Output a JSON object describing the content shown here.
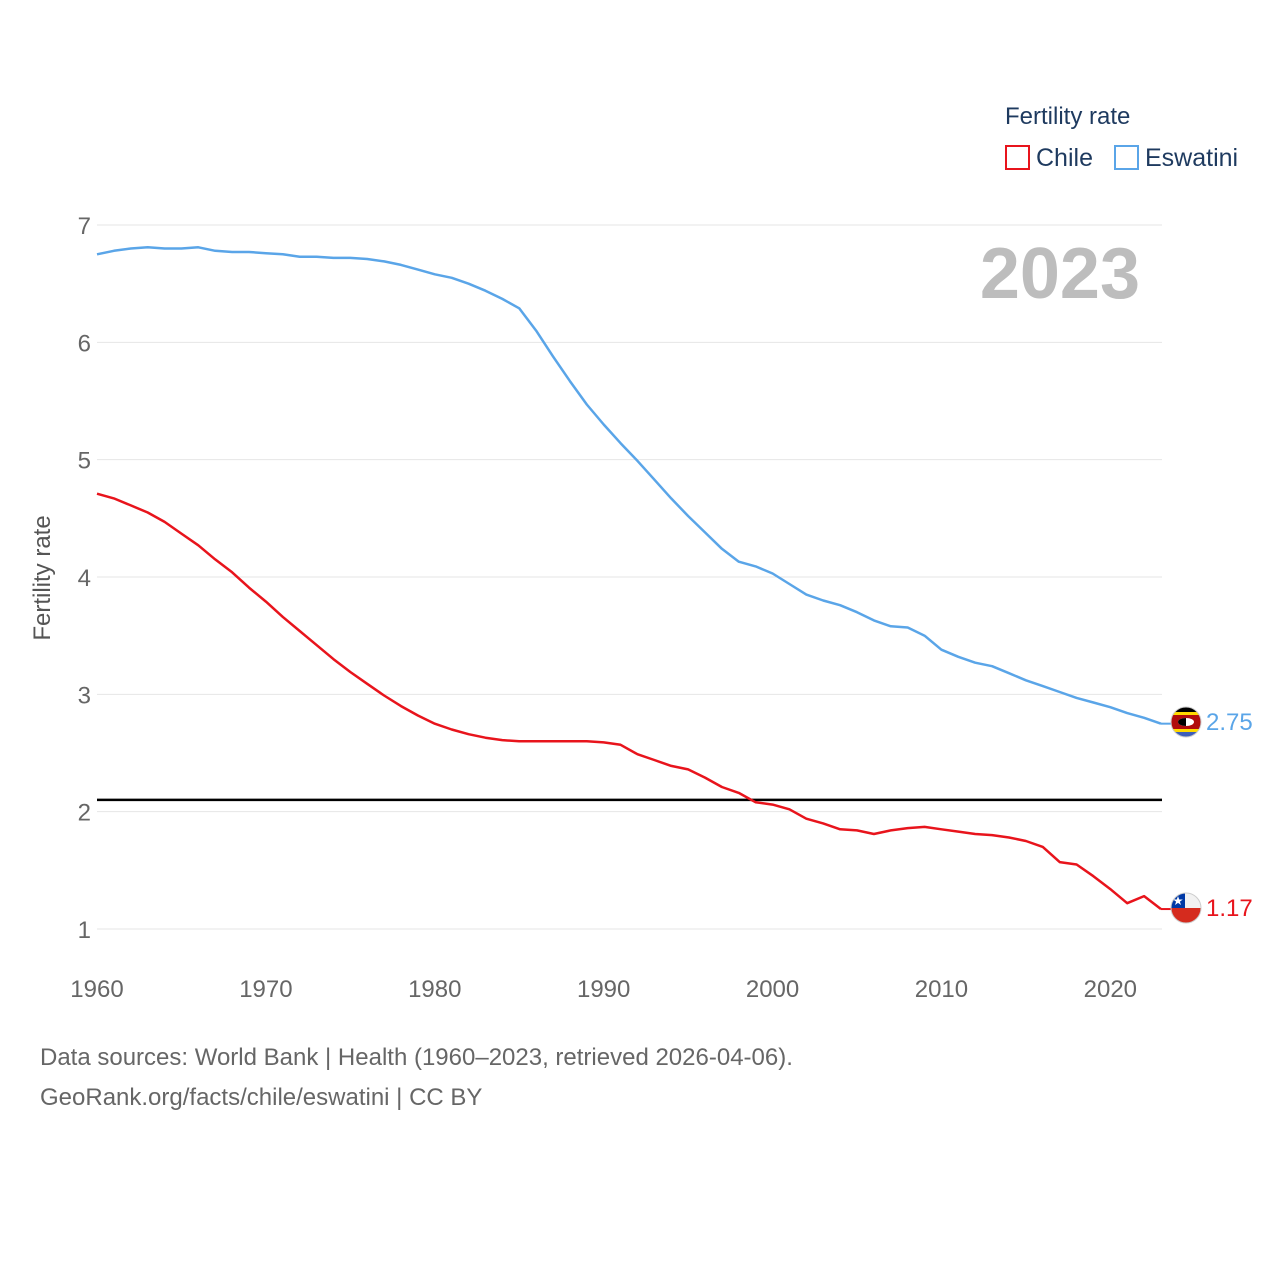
{
  "chart_data": {
    "type": "line",
    "title": "",
    "year_display": "2023",
    "xlabel": "",
    "ylabel": "Fertility rate",
    "xlim": [
      1960,
      2023
    ],
    "ylim": [
      0.9,
      7.1
    ],
    "x_ticks": [
      1960,
      1970,
      1980,
      1990,
      2000,
      2010,
      2020
    ],
    "y_ticks": [
      1,
      2,
      3,
      4,
      5,
      6,
      7
    ],
    "grid": true,
    "legend": {
      "title": "Fertility rate",
      "position": "top-right",
      "entries": [
        "Chile",
        "Eswatini"
      ]
    },
    "reference_line": {
      "value": 2.1,
      "color": "#000000"
    },
    "x": [
      1960,
      1961,
      1962,
      1963,
      1964,
      1965,
      1966,
      1967,
      1968,
      1969,
      1970,
      1971,
      1972,
      1973,
      1974,
      1975,
      1976,
      1977,
      1978,
      1979,
      1980,
      1981,
      1982,
      1983,
      1984,
      1985,
      1986,
      1987,
      1988,
      1989,
      1990,
      1991,
      1992,
      1993,
      1994,
      1995,
      1996,
      1997,
      1998,
      1999,
      2000,
      2001,
      2002,
      2003,
      2004,
      2005,
      2006,
      2007,
      2008,
      2009,
      2010,
      2011,
      2012,
      2013,
      2014,
      2015,
      2016,
      2017,
      2018,
      2019,
      2020,
      2021,
      2022,
      2023
    ],
    "series": [
      {
        "name": "Chile",
        "color": "#e8141c",
        "end_label": "1.17",
        "flag": "chile-flag-icon",
        "values": [
          4.71,
          4.67,
          4.61,
          4.55,
          4.47,
          4.37,
          4.27,
          4.15,
          4.04,
          3.91,
          3.79,
          3.66,
          3.54,
          3.42,
          3.3,
          3.19,
          3.09,
          2.99,
          2.9,
          2.82,
          2.75,
          2.7,
          2.66,
          2.63,
          2.61,
          2.6,
          2.6,
          2.6,
          2.6,
          2.6,
          2.59,
          2.57,
          2.49,
          2.44,
          2.39,
          2.36,
          2.29,
          2.21,
          2.16,
          2.08,
          2.06,
          2.02,
          1.94,
          1.9,
          1.85,
          1.84,
          1.81,
          1.84,
          1.86,
          1.87,
          1.85,
          1.83,
          1.81,
          1.8,
          1.78,
          1.75,
          1.7,
          1.57,
          1.55,
          1.45,
          1.34,
          1.22,
          1.28,
          1.17
        ]
      },
      {
        "name": "Eswatini",
        "color": "#5aa5e8",
        "end_label": "2.75",
        "flag": "eswatini-flag-icon",
        "values": [
          6.75,
          6.78,
          6.8,
          6.81,
          6.8,
          6.8,
          6.81,
          6.78,
          6.77,
          6.77,
          6.76,
          6.75,
          6.73,
          6.73,
          6.72,
          6.72,
          6.71,
          6.69,
          6.66,
          6.62,
          6.58,
          6.55,
          6.5,
          6.44,
          6.37,
          6.29,
          6.1,
          5.88,
          5.67,
          5.47,
          5.3,
          5.14,
          4.99,
          4.83,
          4.67,
          4.52,
          4.38,
          4.24,
          4.13,
          4.09,
          4.03,
          3.94,
          3.85,
          3.8,
          3.76,
          3.7,
          3.63,
          3.58,
          3.57,
          3.5,
          3.38,
          3.32,
          3.27,
          3.24,
          3.18,
          3.12,
          3.07,
          3.02,
          2.97,
          2.93,
          2.89,
          2.84,
          2.8,
          2.75
        ]
      }
    ]
  },
  "footer": {
    "source_line1": "Data sources: World Bank | Health (1960–2023, retrieved 2026-04-06).",
    "source_line2": "GeoRank.org/facts/chile/eswatini | CC BY"
  }
}
